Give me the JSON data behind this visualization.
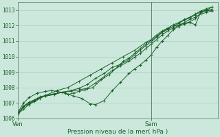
{
  "xlabel": "Pression niveau de la mer( hPa )",
  "bg_color": "#cce8dc",
  "grid_color": "#a0c8b8",
  "line_color": "#1a5e28",
  "ylim": [
    1006.0,
    1013.5
  ],
  "xlim": [
    0,
    36
  ],
  "yticks": [
    1006,
    1007,
    1008,
    1009,
    1010,
    1011,
    1012,
    1013
  ],
  "xtick_positions": [
    0,
    24
  ],
  "xtick_labels": [
    "Ven",
    "Sam"
  ],
  "sam_x": 24,
  "series": [
    {
      "xs": [
        0,
        1,
        2,
        3,
        4,
        5,
        7,
        9,
        11,
        13,
        15,
        17,
        19,
        21,
        23,
        24,
        25,
        26,
        27,
        28,
        29,
        30,
        31,
        32,
        33,
        34,
        35
      ],
      "ys": [
        1006.3,
        1006.6,
        1006.9,
        1007.1,
        1007.3,
        1007.5,
        1007.8,
        1008.0,
        1008.4,
        1008.8,
        1009.2,
        1009.6,
        1010.0,
        1010.4,
        1010.9,
        1011.1,
        1011.4,
        1011.65,
        1011.85,
        1012.05,
        1012.2,
        1012.4,
        1012.55,
        1012.75,
        1012.95,
        1013.1,
        1013.2
      ],
      "marker": false
    },
    {
      "xs": [
        0,
        1,
        2,
        3.5,
        5,
        6,
        7,
        8.5,
        10,
        11.5,
        13,
        14,
        15.5,
        17,
        18.5,
        20,
        21,
        22,
        23,
        24,
        25,
        26,
        27,
        28,
        29,
        30,
        31,
        32,
        33,
        34,
        35
      ],
      "ys": [
        1006.4,
        1007.0,
        1007.35,
        1007.65,
        1007.75,
        1007.8,
        1007.75,
        1007.65,
        1007.45,
        1007.3,
        1006.95,
        1006.9,
        1007.15,
        1007.8,
        1008.35,
        1008.9,
        1009.2,
        1009.45,
        1009.75,
        1010.1,
        1010.6,
        1011.0,
        1011.35,
        1011.75,
        1011.95,
        1012.1,
        1012.2,
        1012.05,
        1012.9,
        1013.0,
        1013.2
      ],
      "marker": true
    },
    {
      "xs": [
        0,
        1,
        2,
        3,
        4,
        5,
        6.5,
        8,
        9,
        10,
        11,
        12,
        13.5,
        15,
        16.5,
        18,
        19,
        20,
        21,
        22,
        23,
        24,
        25,
        26,
        27,
        28,
        29,
        30,
        31,
        32,
        33,
        34,
        35
      ],
      "ys": [
        1006.3,
        1006.75,
        1006.95,
        1007.15,
        1007.35,
        1007.45,
        1007.55,
        1007.7,
        1007.55,
        1007.65,
        1007.75,
        1007.85,
        1008.0,
        1008.5,
        1008.85,
        1009.35,
        1009.7,
        1009.9,
        1010.2,
        1010.5,
        1010.8,
        1011.05,
        1011.3,
        1011.6,
        1011.8,
        1011.95,
        1012.05,
        1012.15,
        1012.25,
        1012.45,
        1012.85,
        1012.95,
        1013.0
      ],
      "marker": false
    },
    {
      "xs": [
        0,
        1,
        2,
        3,
        4,
        5,
        6.5,
        8,
        9.5,
        11,
        12.5,
        14,
        15.5,
        17,
        18.5,
        20,
        21,
        22,
        23,
        24,
        25,
        26,
        27,
        28,
        29,
        30,
        31,
        32,
        33,
        34,
        35
      ],
      "ys": [
        1006.35,
        1006.8,
        1007.0,
        1007.2,
        1007.4,
        1007.5,
        1007.6,
        1007.7,
        1007.8,
        1007.95,
        1008.2,
        1008.6,
        1008.9,
        1009.3,
        1009.5,
        1009.8,
        1010.1,
        1010.4,
        1010.7,
        1010.95,
        1011.25,
        1011.55,
        1011.75,
        1011.95,
        1012.15,
        1012.35,
        1012.5,
        1012.7,
        1012.9,
        1013.0,
        1013.05
      ],
      "marker": false
    },
    {
      "xs": [
        0,
        1,
        2,
        3.5,
        5,
        6.5,
        8,
        9.5,
        11,
        12.5,
        14,
        15.5,
        17,
        18.5,
        20,
        21,
        22,
        23,
        24,
        25,
        26,
        27,
        28,
        29,
        30,
        31,
        32,
        33,
        34,
        35
      ],
      "ys": [
        1006.3,
        1006.8,
        1007.05,
        1007.3,
        1007.45,
        1007.55,
        1007.7,
        1007.75,
        1007.85,
        1007.95,
        1008.3,
        1008.7,
        1009.1,
        1009.4,
        1009.7,
        1009.95,
        1010.2,
        1010.5,
        1010.8,
        1011.1,
        1011.4,
        1011.65,
        1011.85,
        1012.0,
        1012.2,
        1012.4,
        1012.55,
        1012.75,
        1012.85,
        1012.95
      ],
      "marker": false
    }
  ],
  "figsize": [
    3.2,
    2.0
  ],
  "dpi": 100
}
